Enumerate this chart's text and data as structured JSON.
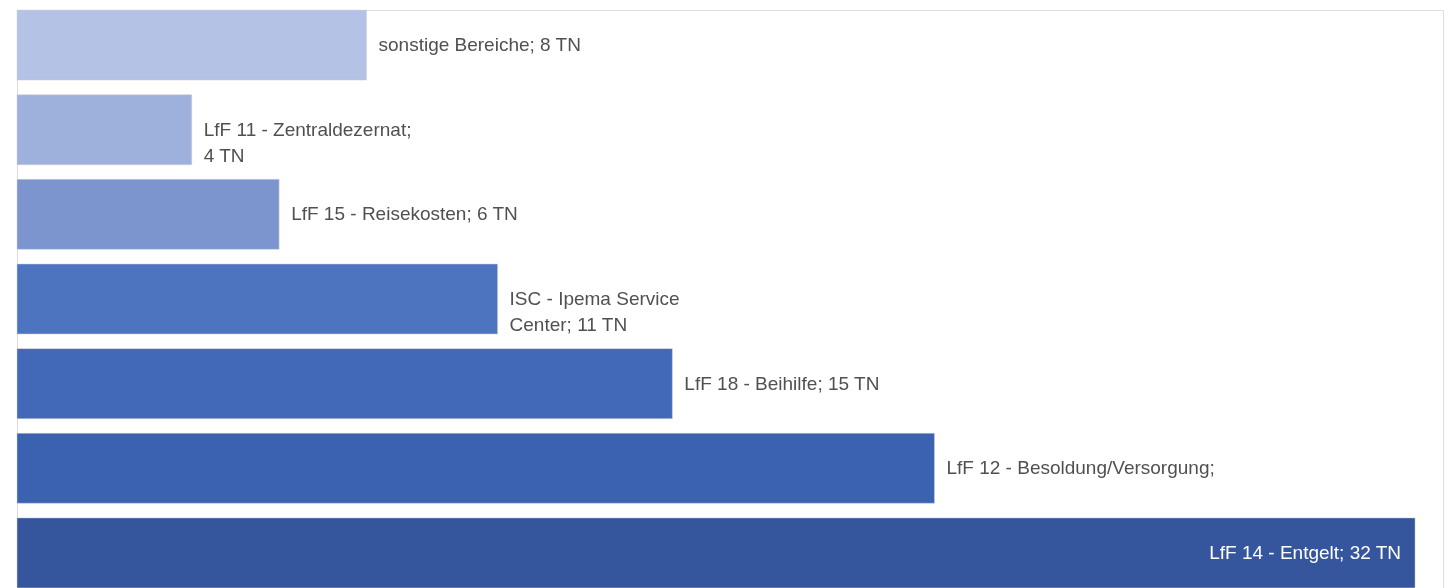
{
  "chart_data": {
    "type": "bar",
    "orientation": "horizontal",
    "categories": [
      null,
      null,
      null,
      null,
      null,
      null,
      null
    ],
    "values": [
      8,
      4,
      6,
      11,
      15,
      21,
      32
    ],
    "colors": [
      "#b4c2e5",
      "#9eb0dc",
      "#7d95cf",
      "#4d74be",
      "#4169b8",
      "#3b62b1",
      "#35569c"
    ],
    "value_labels": [
      "sonstige Bereiche; 8 TN",
      "LfF 11 - Zentraldezernat;\n4 TN",
      "LfF 15 - Reisekosten; 6 TN",
      "ISC - Ipema Service\nCenter; 11 TN",
      "LfF 18 - Beihilfe; 15 TN",
      "LfF 12 - Besoldung/Versorgung;",
      "LfF 14 - Entgelt; 32 TN"
    ],
    "grid": false
  }
}
